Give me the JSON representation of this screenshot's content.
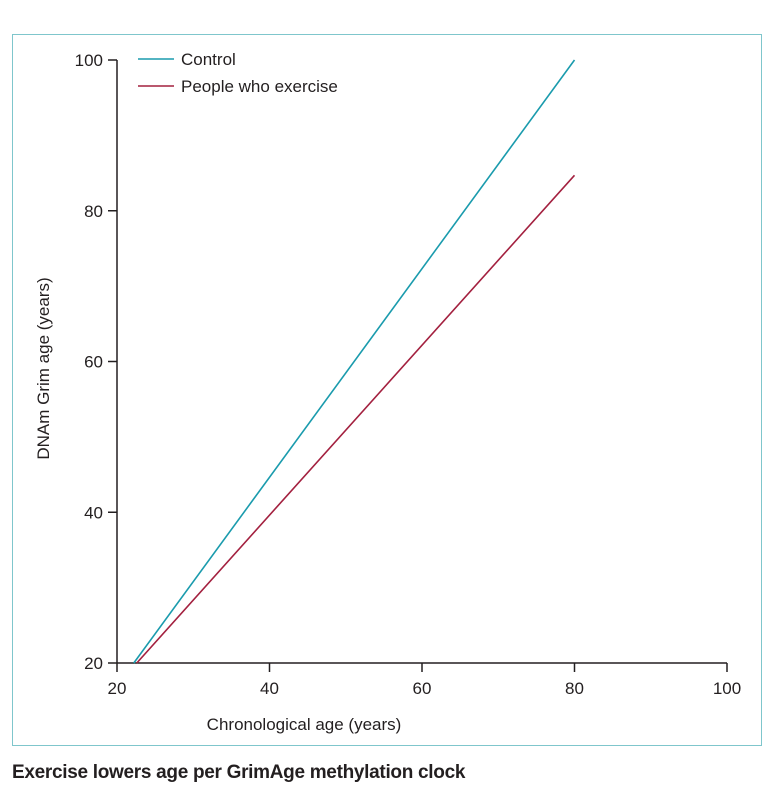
{
  "caption": "Exercise lowers age per GrimAge methylation clock",
  "chart_data": {
    "type": "line",
    "title": "",
    "xlabel": "Chronological age (years)",
    "ylabel": "DNAm Grim age (years)",
    "xlim": [
      20,
      100
    ],
    "ylim": [
      20,
      100
    ],
    "xticks": [
      20,
      40,
      60,
      80,
      100
    ],
    "yticks": [
      20,
      40,
      60,
      80,
      100
    ],
    "grid": false,
    "legend_position": "top-left",
    "series": [
      {
        "name": "Control",
        "color": "#1a9bad",
        "x": [
          22.2,
          80
        ],
        "y": [
          20,
          100
        ]
      },
      {
        "name": "People who exercise",
        "color": "#a3203f",
        "x": [
          22.6,
          80
        ],
        "y": [
          20,
          84.7
        ]
      }
    ]
  }
}
